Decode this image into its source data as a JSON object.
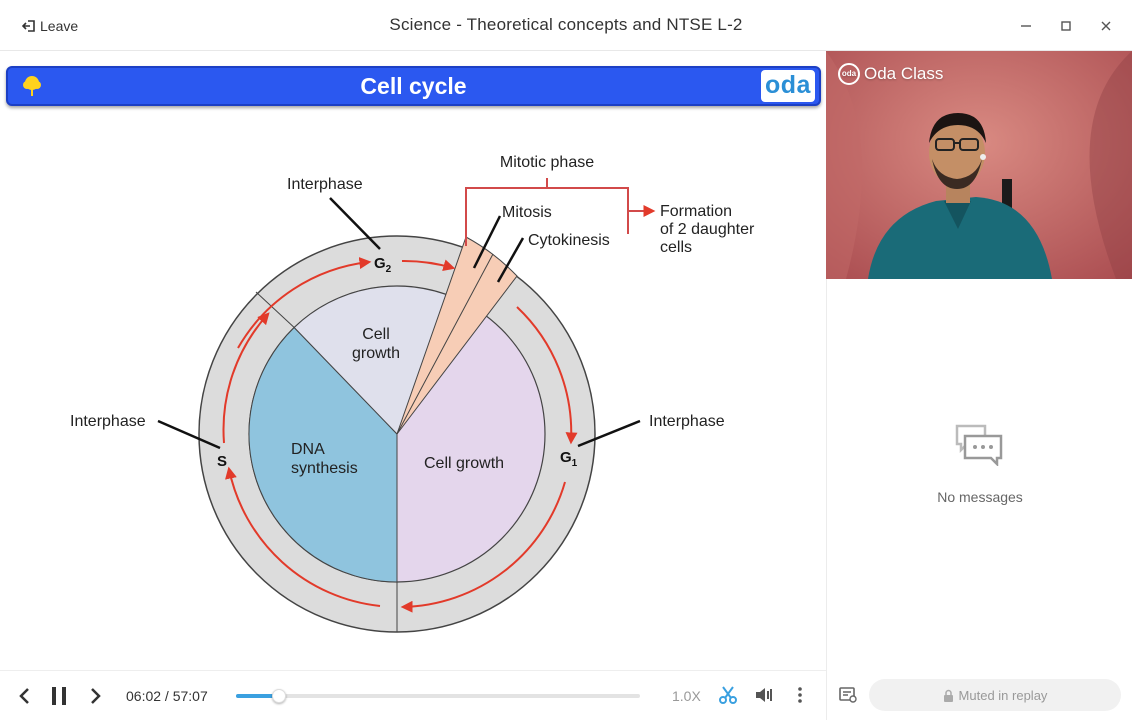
{
  "titlebar": {
    "leave_label": "Leave",
    "title": "Science - Theoretical concepts and NTSE L-2"
  },
  "slide": {
    "title": "Cell cycle",
    "brand": "oda",
    "header_color": "#2b58f0",
    "diagram": {
      "mitotic_phase": "Mitotic phase",
      "mitosis": "Mitosis",
      "cytokinesis": "Cytokinesis",
      "formation_line1": "Formation",
      "formation_line2": "of 2 daughter",
      "formation_line3": "cells",
      "interphase_top": "Interphase",
      "interphase_left": "Interphase",
      "interphase_right": "Interphase",
      "g2": "G",
      "g2_sub": "2",
      "g1": "G",
      "g1_sub": "1",
      "s": "S",
      "cell_growth_top_1": "Cell",
      "cell_growth_top_2": "growth",
      "dna_1": "DNA",
      "dna_2": "synthesis",
      "cell_growth_right": "Cell growth"
    }
  },
  "video": {
    "brand_mark": "oda",
    "brand_name": "Oda Class"
  },
  "chat": {
    "empty_text": "No messages",
    "muted_label": "Muted in replay"
  },
  "player": {
    "current_time": "06:02",
    "separator": " / ",
    "total_time": "57:07",
    "progress_fraction": 0.106,
    "speed": "1.0X",
    "accent": "#3aa0e0"
  }
}
